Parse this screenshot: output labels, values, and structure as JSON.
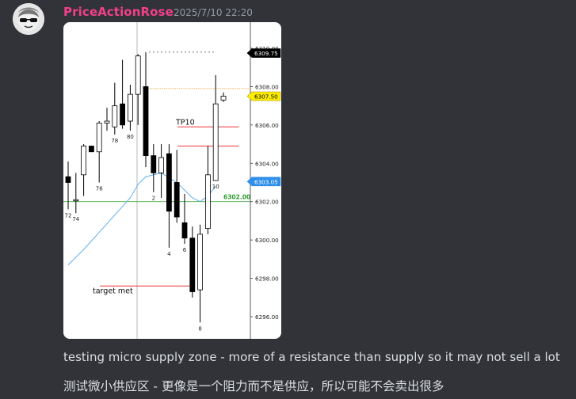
{
  "message": {
    "username": "PriceActionRose",
    "timestamp": "2025/7/10 22:20",
    "line1": "testing micro supply zone - more of a resistance than supply so it may not sell a lot",
    "line2": "测试微小供应区 - 更像是一个阻力而不是供应，所以可能不会卖出很多"
  },
  "chart_data": {
    "type": "candlestick",
    "ylim": [
      6295,
      6310.5
    ],
    "y_ticks": [
      "6310.00",
      "6308.00",
      "6306.00",
      "6304.00",
      "6302.00",
      "6300.00",
      "6298.00",
      "6296.00"
    ],
    "y_tick_values": [
      6310,
      6308,
      6306,
      6304,
      6302,
      6300,
      6298,
      6296
    ],
    "price_badges": [
      {
        "label": "6309.75",
        "value": 6309.75,
        "color": "#000000",
        "text_color": "#ffffff"
      },
      {
        "label": "6307.50",
        "value": 6307.5,
        "color": "#ffee00",
        "text_color": "#000000"
      },
      {
        "label": "6303.05",
        "value": 6303.05,
        "color": "#2f8fe8",
        "text_color": "#ffffff"
      }
    ],
    "green_line": {
      "label": "6302.00",
      "value": 6302.0,
      "color": "#2e9e2e"
    },
    "orange_line": {
      "value": 6307.9,
      "color": "#e89a28"
    },
    "dashed_line": {
      "value": 6309.8,
      "color": "#444444"
    },
    "annotations": [
      {
        "text": "TP10",
        "price": 6305.9
      },
      {
        "text": "target met",
        "price": 6297.6
      }
    ],
    "red_lines": [
      {
        "price": 6305.9,
        "bar_from": 14,
        "bar_to": 22
      },
      {
        "price": 6304.9,
        "bar_from": 14,
        "bar_to": 22
      },
      {
        "price": 6297.6,
        "bar_from": 4,
        "bar_to": 16
      }
    ],
    "candles": [
      {
        "o": 6303.3,
        "h": 6304.1,
        "l": 6301.6,
        "c": 6303.0
      },
      {
        "o": 6302.1,
        "h": 6303.5,
        "l": 6301.4,
        "c": 6302.1
      },
      {
        "o": 6303.4,
        "h": 6305.0,
        "l": 6302.3,
        "c": 6304.9
      },
      {
        "o": 6304.9,
        "h": 6304.9,
        "l": 6304.6,
        "c": 6304.6
      },
      {
        "o": 6304.6,
        "h": 6306.2,
        "l": 6303.0,
        "c": 6306.1
      },
      {
        "o": 6306.1,
        "h": 6306.9,
        "l": 6305.7,
        "c": 6306.2
      },
      {
        "o": 6305.9,
        "h": 6308.2,
        "l": 6305.5,
        "c": 6307.0
      },
      {
        "o": 6307.1,
        "h": 6309.4,
        "l": 6305.8,
        "c": 6306.0
      },
      {
        "o": 6306.2,
        "h": 6308.1,
        "l": 6305.7,
        "c": 6307.6
      },
      {
        "o": 6307.6,
        "h": 6309.7,
        "l": 6306.0,
        "c": 6309.6
      },
      {
        "o": 6308.0,
        "h": 6309.8,
        "l": 6303.8,
        "c": 6304.4
      },
      {
        "o": 6304.4,
        "h": 6305.0,
        "l": 6302.5,
        "c": 6303.5
      },
      {
        "o": 6303.5,
        "h": 6305.0,
        "l": 6302.2,
        "c": 6304.3
      },
      {
        "o": 6304.5,
        "h": 6305.0,
        "l": 6299.6,
        "c": 6301.5
      },
      {
        "o": 6303.0,
        "h": 6304.7,
        "l": 6300.9,
        "c": 6301.2
      },
      {
        "o": 6300.9,
        "h": 6302.4,
        "l": 6299.8,
        "c": 6300.1
      },
      {
        "o": 6300.1,
        "h": 6300.7,
        "l": 6297.0,
        "c": 6297.3
      },
      {
        "o": 6297.4,
        "h": 6300.8,
        "l": 6295.7,
        "c": 6300.3
      },
      {
        "o": 6300.6,
        "h": 6304.9,
        "l": 6300.3,
        "c": 6303.4
      },
      {
        "o": 6303.1,
        "h": 6308.6,
        "l": 6303.1,
        "c": 6307.1
      },
      {
        "o": 6307.3,
        "h": 6307.7,
        "l": 6307.2,
        "c": 6307.5
      }
    ],
    "bar_labels": [
      {
        "bar": 0,
        "text": "72",
        "position": "below"
      },
      {
        "bar": 1,
        "text": "74",
        "position": "below"
      },
      {
        "bar": 4,
        "text": "76",
        "position": "below"
      },
      {
        "bar": 6,
        "text": "78",
        "position": "below"
      },
      {
        "bar": 8,
        "text": "80",
        "position": "below"
      },
      {
        "bar": 11,
        "text": "2",
        "position": "below"
      },
      {
        "bar": 13,
        "text": "4",
        "position": "below"
      },
      {
        "bar": 15,
        "text": "6",
        "position": "below"
      },
      {
        "bar": 17,
        "text": "8",
        "position": "below"
      },
      {
        "bar": 19,
        "text": "10",
        "position": "below"
      }
    ],
    "moving_average": [
      {
        "bar": 0,
        "value": 6298.7
      },
      {
        "bar": 2,
        "value": 6299.5
      },
      {
        "bar": 4,
        "value": 6300.4
      },
      {
        "bar": 6,
        "value": 6301.3
      },
      {
        "bar": 8,
        "value": 6302.2
      },
      {
        "bar": 9,
        "value": 6302.9
      },
      {
        "bar": 10,
        "value": 6303.3
      },
      {
        "bar": 12,
        "value": 6303.5
      },
      {
        "bar": 14,
        "value": 6303.0
      },
      {
        "bar": 16,
        "value": 6302.2
      },
      {
        "bar": 17,
        "value": 6302.0
      },
      {
        "bar": 18,
        "value": 6302.3
      },
      {
        "bar": 19,
        "value": 6302.8
      }
    ],
    "colors": {
      "up_body": "#ffffff",
      "down_body": "#000000",
      "ma_line": "#5fb0f0",
      "red_line": "#ee3333"
    }
  }
}
